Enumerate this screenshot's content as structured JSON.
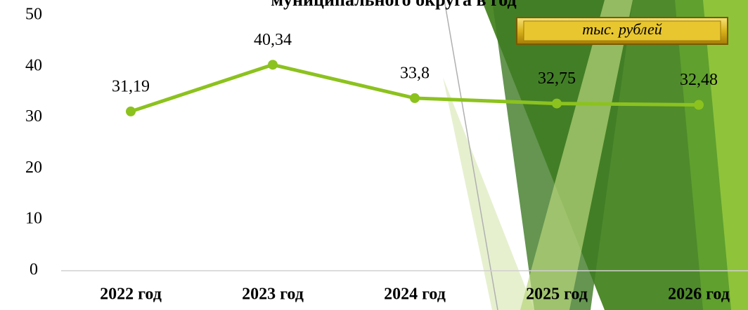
{
  "chart_data": {
    "type": "line",
    "title": "муниципального округа в год",
    "unit_label": "тыс. рублей",
    "categories": [
      "2022 год",
      "2023 год",
      "2024 год",
      "2025 год",
      "2026 год"
    ],
    "values": [
      31.19,
      40.34,
      33.8,
      32.75,
      32.48
    ],
    "value_labels": [
      "31,19",
      "40,34",
      "33,8",
      "32,75",
      "32,48"
    ],
    "color": "#8cc21e",
    "ylim": [
      0,
      50
    ],
    "yticks": [
      0,
      10,
      20,
      30,
      40,
      50
    ]
  }
}
